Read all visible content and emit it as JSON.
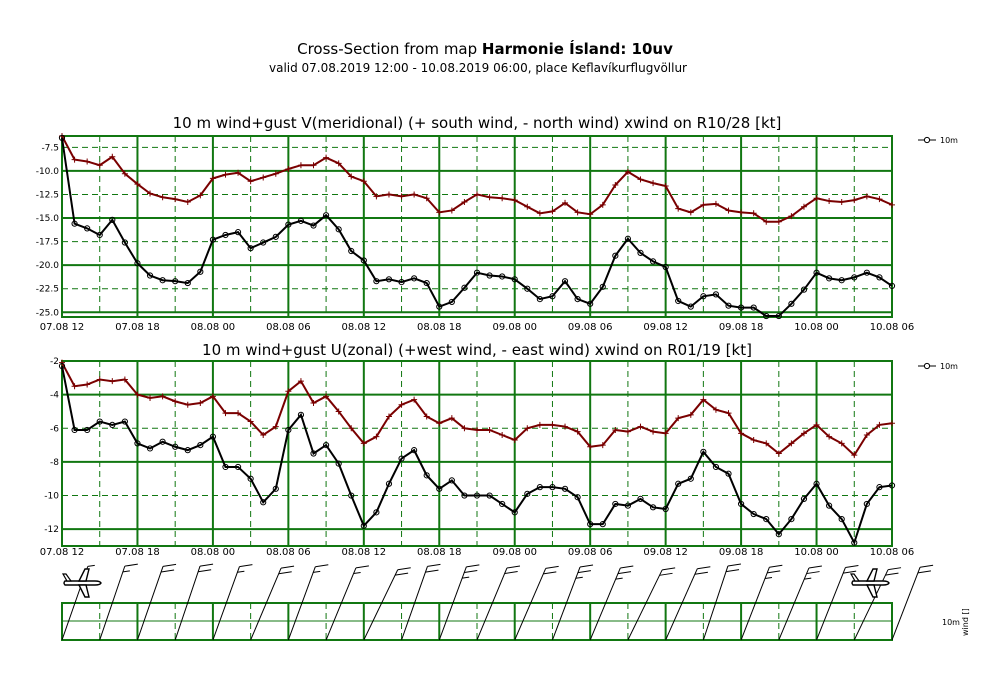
{
  "header": {
    "title_prefix": "Cross-Section from map ",
    "title_bold": "Harmonie Ísland: 10uv",
    "subtitle": "valid 07.08.2019 12:00 - 10.08.2019 06:00, place Keflavíkurflugvöllur"
  },
  "colors": {
    "grid": "#117711",
    "gust": "#7a0000",
    "wind": "#000000"
  },
  "chart_data": [
    {
      "type": "line",
      "title": "10 m wind+gust V(meridional) (+ south wind, - north wind) xwind on R10/28 [kt]",
      "x_tick_labels": [
        "07.08 12",
        "07.08 18",
        "08.08 00",
        "08.08 06",
        "08.08 12",
        "08.08 18",
        "09.08 00",
        "09.08 06",
        "09.08 12",
        "09.08 18",
        "10.08 00",
        "10.08 06"
      ],
      "x_unit": "hours since 07.08.2019 12:00",
      "y_tick_labels": [
        "-7.5",
        "-10.0",
        "-12.5",
        "-15.0",
        "-17.5",
        "-20.0",
        "-22.5",
        "-25.0"
      ],
      "ylim": [
        -25.5,
        -6.3
      ],
      "legend": "10m",
      "series": [
        {
          "name": "gust",
          "x": [
            0,
            1,
            2,
            3,
            4,
            5,
            6,
            7,
            8,
            9,
            10,
            11,
            12,
            13,
            14,
            15,
            16,
            17,
            18,
            19,
            20,
            21,
            22,
            23,
            24,
            25,
            26,
            27,
            28,
            29,
            30,
            31,
            32,
            33,
            34,
            35,
            36,
            37,
            38,
            39,
            40,
            41,
            42,
            43,
            44,
            45,
            46,
            47,
            48,
            49,
            50,
            51,
            52,
            53,
            54,
            55,
            56,
            57,
            58,
            59,
            60,
            61,
            62,
            63,
            64,
            65,
            66
          ],
          "values": [
            -6.3,
            -8.8,
            -9.0,
            -9.4,
            -8.5,
            -10.3,
            -11.4,
            -12.4,
            -12.8,
            -13.0,
            -13.3,
            -12.6,
            -10.8,
            -10.4,
            -10.2,
            -11.1,
            -10.7,
            -10.3,
            -9.8,
            -9.4,
            -9.4,
            -8.6,
            -9.2,
            -10.6,
            -11.1,
            -12.7,
            -12.5,
            -12.7,
            -12.5,
            -12.9,
            -14.4,
            -14.2,
            -13.3,
            -12.5,
            -12.8,
            -12.9,
            -13.1,
            -13.8,
            -14.5,
            -14.3,
            -13.4,
            -14.4,
            -14.6,
            -13.6,
            -11.5,
            -10.1,
            -10.9,
            -11.3,
            -11.6,
            -14.0,
            -14.4,
            -13.6,
            -13.5,
            -14.2,
            -14.4,
            -14.5,
            -15.4,
            -15.4,
            -14.8,
            -13.8,
            -12.9,
            -13.2,
            -13.3,
            -13.1,
            -12.7,
            -13.0,
            -13.6
          ]
        },
        {
          "name": "wind",
          "x": [
            0,
            1,
            2,
            3,
            4,
            5,
            6,
            7,
            8,
            9,
            10,
            11,
            12,
            13,
            14,
            15,
            16,
            17,
            18,
            19,
            20,
            21,
            22,
            23,
            24,
            25,
            26,
            27,
            28,
            29,
            30,
            31,
            32,
            33,
            34,
            35,
            36,
            37,
            38,
            39,
            40,
            41,
            42,
            43,
            44,
            45,
            46,
            47,
            48,
            49,
            50,
            51,
            52,
            53,
            54,
            55,
            56,
            57,
            58,
            59,
            60,
            61,
            62,
            63,
            64,
            65,
            66
          ],
          "values": [
            -6.5,
            -15.6,
            -16.1,
            -16.8,
            -15.2,
            -17.6,
            -19.8,
            -21.1,
            -21.6,
            -21.7,
            -21.9,
            -20.7,
            -17.3,
            -16.8,
            -16.5,
            -18.2,
            -17.6,
            -17.0,
            -15.7,
            -15.3,
            -15.8,
            -14.7,
            -16.2,
            -18.5,
            -19.5,
            -21.7,
            -21.5,
            -21.8,
            -21.4,
            -21.9,
            -24.4,
            -23.9,
            -22.4,
            -20.8,
            -21.1,
            -21.2,
            -21.5,
            -22.5,
            -23.6,
            -23.3,
            -21.7,
            -23.6,
            -24.1,
            -22.3,
            -19.0,
            -17.2,
            -18.7,
            -19.6,
            -20.2,
            -23.8,
            -24.4,
            -23.3,
            -23.1,
            -24.3,
            -24.5,
            -24.5,
            -25.4,
            -25.4,
            -24.1,
            -22.6,
            -20.8,
            -21.4,
            -21.6,
            -21.3,
            -20.8,
            -21.3,
            -22.2
          ]
        }
      ]
    },
    {
      "type": "line",
      "title": "10 m wind+gust U(zonal) (+west wind, - east wind) xwind on R01/19 [kt]",
      "x_tick_labels": [
        "07.08 12",
        "07.08 18",
        "08.08 00",
        "08.08 06",
        "08.08 12",
        "08.08 18",
        "09.08 00",
        "09.08 06",
        "09.08 12",
        "09.08 18",
        "10.08 00",
        "10.08 06"
      ],
      "x_unit": "hours since 07.08.2019 12:00",
      "y_tick_labels": [
        "-2",
        "-4",
        "-6",
        "-8",
        "-10",
        "-12"
      ],
      "ylim": [
        -13.0,
        -2.0
      ],
      "legend": "10m",
      "series": [
        {
          "name": "gust",
          "x": [
            0,
            1,
            2,
            3,
            4,
            5,
            6,
            7,
            8,
            9,
            10,
            11,
            12,
            13,
            14,
            15,
            16,
            17,
            18,
            19,
            20,
            21,
            22,
            23,
            24,
            25,
            26,
            27,
            28,
            29,
            30,
            31,
            32,
            33,
            34,
            35,
            36,
            37,
            38,
            39,
            40,
            41,
            42,
            43,
            44,
            45,
            46,
            47,
            48,
            49,
            50,
            51,
            52,
            53,
            54,
            55,
            56,
            57,
            58,
            59,
            60,
            61,
            62,
            63,
            64,
            65,
            66
          ],
          "values": [
            -2.1,
            -3.5,
            -3.4,
            -3.1,
            -3.2,
            -3.1,
            -4.0,
            -4.2,
            -4.1,
            -4.4,
            -4.6,
            -4.5,
            -4.1,
            -5.1,
            -5.1,
            -5.6,
            -6.4,
            -5.9,
            -3.8,
            -3.2,
            -4.5,
            -4.1,
            -5.0,
            -6.0,
            -6.9,
            -6.5,
            -5.3,
            -4.6,
            -4.3,
            -5.3,
            -5.7,
            -5.4,
            -6.0,
            -6.1,
            -6.1,
            -6.4,
            -6.7,
            -6.0,
            -5.8,
            -5.8,
            -5.9,
            -6.2,
            -7.1,
            -7.0,
            -6.1,
            -6.2,
            -5.9,
            -6.2,
            -6.3,
            -5.4,
            -5.2,
            -4.3,
            -4.9,
            -5.1,
            -6.3,
            -6.7,
            -6.9,
            -7.5,
            -6.9,
            -6.3,
            -5.8,
            -6.5,
            -6.9,
            -7.6,
            -6.4,
            -5.8,
            -5.7
          ]
        },
        {
          "name": "wind",
          "x": [
            0,
            1,
            2,
            3,
            4,
            5,
            6,
            7,
            8,
            9,
            10,
            11,
            12,
            13,
            14,
            15,
            16,
            17,
            18,
            19,
            20,
            21,
            22,
            23,
            24,
            25,
            26,
            27,
            28,
            29,
            30,
            31,
            32,
            33,
            34,
            35,
            36,
            37,
            38,
            39,
            40,
            41,
            42,
            43,
            44,
            45,
            46,
            47,
            48,
            49,
            50,
            51,
            52,
            53,
            54,
            55,
            56,
            57,
            58,
            59,
            60,
            61,
            62,
            63,
            64,
            65,
            66
          ],
          "values": [
            -2.3,
            -6.1,
            -6.1,
            -5.6,
            -5.8,
            -5.6,
            -6.9,
            -7.2,
            -6.8,
            -7.1,
            -7.3,
            -7.0,
            -6.5,
            -8.3,
            -8.3,
            -9.0,
            -10.4,
            -9.6,
            -6.1,
            -5.2,
            -7.5,
            -7.0,
            -8.1,
            -10.0,
            -11.8,
            -11.0,
            -9.3,
            -7.8,
            -7.3,
            -8.8,
            -9.6,
            -9.1,
            -10.0,
            -10.0,
            -10.0,
            -10.5,
            -11.0,
            -9.9,
            -9.5,
            -9.5,
            -9.6,
            -10.1,
            -11.7,
            -11.7,
            -10.5,
            -10.6,
            -10.2,
            -10.7,
            -10.8,
            -9.3,
            -9.0,
            -7.4,
            -8.3,
            -8.7,
            -10.5,
            -11.1,
            -11.4,
            -12.3,
            -11.4,
            -10.2,
            -9.3,
            -10.6,
            -11.4,
            -12.8,
            -10.5,
            -9.5,
            -9.4
          ]
        }
      ]
    }
  ],
  "barbs": {
    "legend_label": "10m",
    "axis_label": "wind []"
  }
}
